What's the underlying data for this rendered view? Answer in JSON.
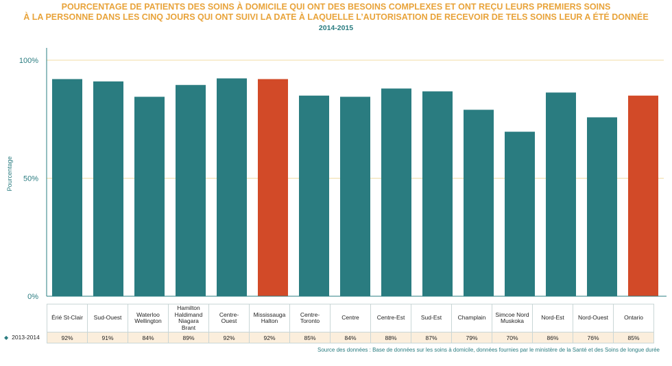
{
  "chart_data": {
    "type": "bar",
    "title_line1": "POURCENTAGE DE PATIENTS DES SOINS À DOMICILE QUI ONT DES BESOINS COMPLEXES ET ONT REÇU LEURS PREMIERS SOINS",
    "title_line2": "À LA PERSONNE DANS LES CINQ JOURS QUI ONT SUIVI LA DATE À LAQUELLE L’AUTORISATION DE RECEVOIR DE TELS SOINS LEUR A ÉTÉ DONNÉE",
    "subtitle": "2014-2015",
    "ylabel": "Pourcentage",
    "xlabel": "",
    "ylim": [
      0,
      100
    ],
    "yticks": [
      "0%",
      "50%",
      "100%"
    ],
    "categories": [
      "Érié St-Clair",
      "Sud-Ouest",
      "Waterloo Wellington",
      "Hamilton Haldimand Niagara Brant",
      "Centre-Ouest",
      "Mississauga Halton",
      "Centre-Toronto",
      "Centre",
      "Centre-Est",
      "Sud-Est",
      "Champlain",
      "Simcoe Nord Muskoka",
      "Nord-Est",
      "Nord-Ouest",
      "Ontario"
    ],
    "category_lines": [
      [
        "Érié St-Clair"
      ],
      [
        "Sud-Ouest"
      ],
      [
        "Waterloo",
        "Wellington"
      ],
      [
        "Hamilton",
        "Haldimand",
        "Niagara",
        "Brant"
      ],
      [
        "Centre-",
        "Ouest"
      ],
      [
        "Mississauga",
        "Halton"
      ],
      [
        "Centre-",
        "Toronto"
      ],
      [
        "Centre"
      ],
      [
        "Centre-Est"
      ],
      [
        "Sud-Est"
      ],
      [
        "Champlain"
      ],
      [
        "Simcoe Nord",
        "Muskoka"
      ],
      [
        "Nord-Est"
      ],
      [
        "Nord-Ouest"
      ],
      [
        "Ontario"
      ]
    ],
    "series": [
      {
        "name": "2013-2014",
        "values": [
          92,
          91,
          84.5,
          89.5,
          92.3,
          92,
          85,
          84.5,
          88,
          86.8,
          79,
          69.7,
          86.3,
          75.8,
          85
        ],
        "value_labels": [
          "92%",
          "91%",
          "84%",
          "89%",
          "92%",
          "92%",
          "85%",
          "84%",
          "88%",
          "87%",
          "79%",
          "70%",
          "86%",
          "76%",
          "85%"
        ]
      }
    ],
    "highlighted": [
      "Mississauga Halton",
      "Ontario"
    ],
    "grid": true,
    "colors": {
      "bar": "#2a7c80",
      "highlight": "#d24a28",
      "gridline": "#f0dca6",
      "axis": "#2a7c80"
    }
  },
  "source": "Source des données : Base de données sur les soins à domicile, données fournies par le ministère de la Santé et des Soins de longue durée",
  "legend_marker_icon": "diamond-icon",
  "legend_marker_glyph": "◆"
}
